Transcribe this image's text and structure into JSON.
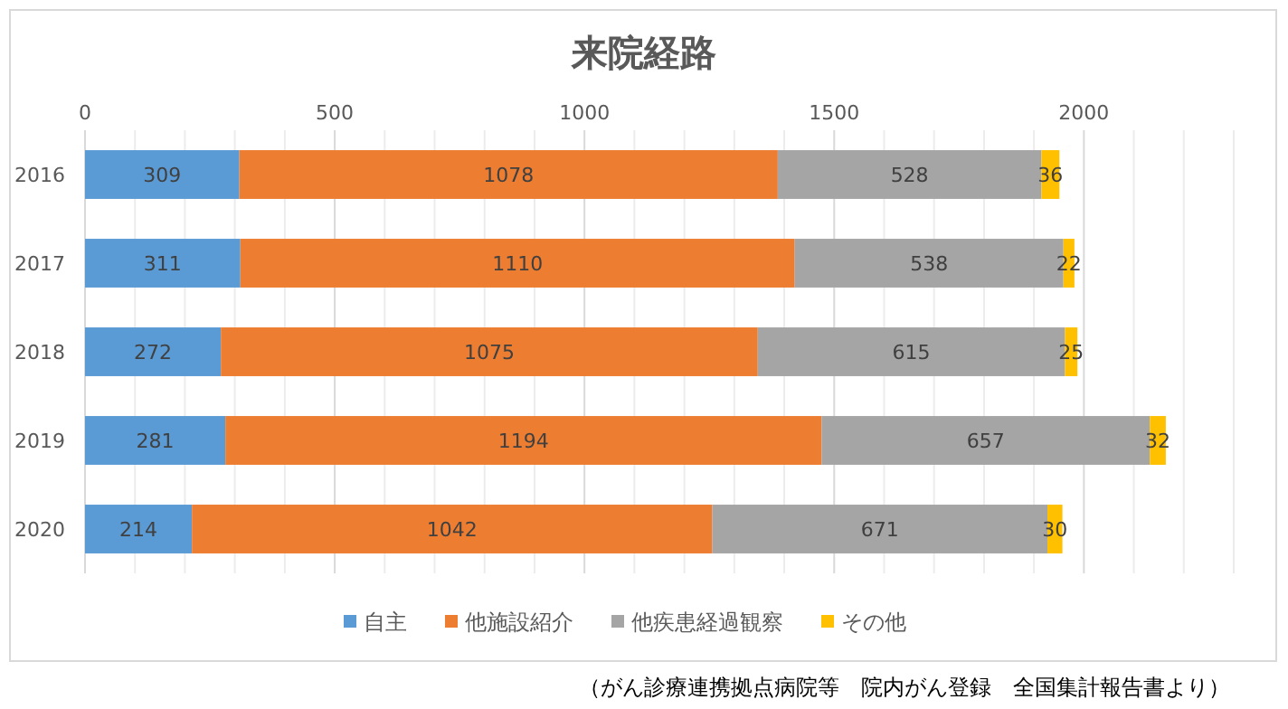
{
  "chart_data": {
    "type": "bar",
    "title": "来院経路",
    "orientation": "horizontal",
    "stacked": true,
    "categories": [
      "2016",
      "2017",
      "2018",
      "2019",
      "2020"
    ],
    "series": [
      {
        "name": "自主",
        "color": "#5b9bd5",
        "values": [
          309,
          311,
          272,
          281,
          214
        ]
      },
      {
        "name": "他施設紹介",
        "color": "#ed7d31",
        "values": [
          1078,
          1110,
          1075,
          1194,
          1042
        ]
      },
      {
        "name": "他疾患経過観察",
        "color": "#a5a5a5",
        "values": [
          528,
          538,
          615,
          657,
          671
        ]
      },
      {
        "name": "その他",
        "color": "#ffc000",
        "values": [
          36,
          22,
          25,
          32,
          30
        ]
      }
    ],
    "xlim": [
      0,
      2300
    ],
    "xticks": [
      0,
      {
        "value": 100,
        "label": null
      },
      {
        "value": 200,
        "label": null
      },
      {
        "value": 300,
        "label": null
      },
      {
        "value": 400,
        "label": null
      },
      500,
      {
        "value": 600,
        "label": null
      },
      {
        "value": 700,
        "label": null
      },
      {
        "value": 800,
        "label": null
      },
      {
        "value": 900,
        "label": null
      },
      1000,
      {
        "value": 1100,
        "label": null
      },
      {
        "value": 1200,
        "label": null
      },
      {
        "value": 1300,
        "label": null
      },
      {
        "value": 1400,
        "label": null
      },
      1500,
      {
        "value": 1600,
        "label": null
      },
      {
        "value": 1700,
        "label": null
      },
      {
        "value": 1800,
        "label": null
      },
      {
        "value": 1900,
        "label": null
      },
      2000,
      {
        "value": 2100,
        "label": null
      },
      {
        "value": 2200,
        "label": null
      },
      {
        "value": 2300,
        "label": null
      }
    ],
    "grid": "x",
    "legend": "bottom",
    "data_labels": true,
    "annotations": [
      "（がん診療連携拠点病院等　院内がん登録　全国集計報告書より）"
    ]
  }
}
